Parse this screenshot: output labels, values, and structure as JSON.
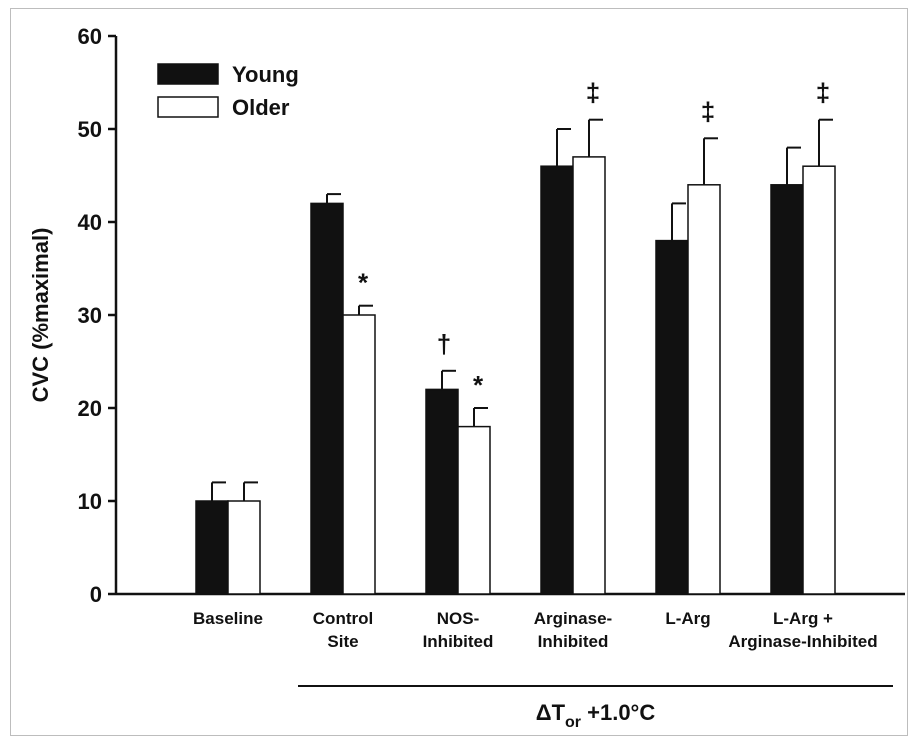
{
  "chart_data": {
    "type": "bar",
    "categories": [
      [
        "Baseline"
      ],
      [
        "Control",
        "Site"
      ],
      [
        "NOS-",
        "Inhibited"
      ],
      [
        "Arginase-",
        "Inhibited"
      ],
      [
        "L-Arg"
      ],
      [
        "L-Arg +",
        "Arginase-Inhibited"
      ]
    ],
    "series": [
      {
        "name": "Young",
        "fill": "#111111",
        "values": [
          10,
          42,
          22,
          46,
          38,
          44
        ],
        "errors": [
          2,
          1,
          2,
          4,
          4,
          4
        ]
      },
      {
        "name": "Older",
        "fill": "#ffffff",
        "values": [
          10,
          30,
          18,
          47,
          44,
          46
        ],
        "errors": [
          2,
          1,
          2,
          4,
          5,
          5
        ]
      }
    ],
    "ylabel": "CVC (%maximal)",
    "xlabel": {
      "main": "ΔT",
      "sub": "or",
      "rest": " +1.0°C"
    },
    "ylim": [
      0,
      60
    ],
    "yticks": [
      0,
      10,
      20,
      30,
      40,
      50,
      60
    ],
    "legend": "top-left",
    "grid": false,
    "annotations": [
      {
        "category": 1,
        "series": 1,
        "text": "*"
      },
      {
        "category": 2,
        "series": 0,
        "text": "†"
      },
      {
        "category": 2,
        "series": 1,
        "text": "*"
      },
      {
        "category": 3,
        "series": 1,
        "text": "‡"
      },
      {
        "category": 4,
        "series": 1,
        "text": "‡"
      },
      {
        "category": 5,
        "series": 1,
        "text": "‡"
      }
    ],
    "bracket_span": [
      1,
      5
    ]
  }
}
